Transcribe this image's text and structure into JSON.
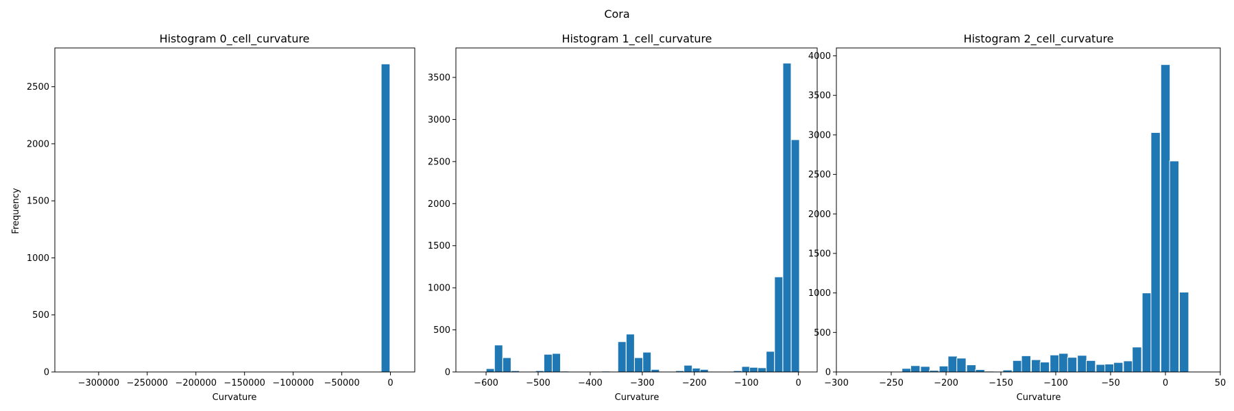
{
  "figure_title": "Cora",
  "colors": {
    "bar": "#1f77b4",
    "bar_edge": "#ffffff"
  },
  "chart_data": [
    {
      "type": "bar",
      "title": "Histogram 0_cell_curvature",
      "xlabel": "Curvature",
      "ylabel": "Frequency",
      "xlim": [
        -345000,
        25000
      ],
      "ylim": [
        0,
        2840
      ],
      "bar_width": 9000,
      "xticks": [
        -300000,
        -250000,
        -200000,
        -150000,
        -100000,
        -50000,
        0
      ],
      "xtick_labels": [
        "−300000",
        "−250000",
        "−200000",
        "−150000",
        "−100000",
        "−50000",
        "0"
      ],
      "yticks": [
        0,
        500,
        1000,
        1500,
        2000,
        2500
      ],
      "ytick_labels": [
        "0",
        "500",
        "1000",
        "1500",
        "2000",
        "2500"
      ],
      "bins": [
        {
          "x": -5000,
          "count": 2700
        }
      ]
    },
    {
      "type": "bar",
      "title": "Histogram 1_cell_curvature",
      "xlabel": "Curvature",
      "ylabel": "",
      "xlim": [
        -658,
        36
      ],
      "ylim": [
        0,
        3850
      ],
      "bar_width": 15.8,
      "xticks": [
        -600,
        -500,
        -400,
        -300,
        -200,
        -100,
        0
      ],
      "xtick_labels": [
        "−600",
        "−500",
        "−400",
        "−300",
        "−200",
        "−100",
        "0"
      ],
      "yticks": [
        0,
        500,
        1000,
        1500,
        2000,
        2500,
        3000,
        3500
      ],
      "ytick_labels": [
        "0",
        "500",
        "1000",
        "1500",
        "2000",
        "2500",
        "3000",
        "3500"
      ],
      "bins": [
        {
          "x": -592,
          "count": 40
        },
        {
          "x": -576,
          "count": 320
        },
        {
          "x": -560,
          "count": 170
        },
        {
          "x": -544,
          "count": 15
        },
        {
          "x": -497,
          "count": 15
        },
        {
          "x": -481,
          "count": 210
        },
        {
          "x": -465,
          "count": 220
        },
        {
          "x": -449,
          "count": 10
        },
        {
          "x": -433,
          "count": 5
        },
        {
          "x": -417,
          "count": 5
        },
        {
          "x": -402,
          "count": 5
        },
        {
          "x": -370,
          "count": 10
        },
        {
          "x": -339,
          "count": 360
        },
        {
          "x": -323,
          "count": 450
        },
        {
          "x": -307,
          "count": 170
        },
        {
          "x": -291,
          "count": 235
        },
        {
          "x": -275,
          "count": 30
        },
        {
          "x": -228,
          "count": 15
        },
        {
          "x": -212,
          "count": 80
        },
        {
          "x": -196,
          "count": 45
        },
        {
          "x": -181,
          "count": 30
        },
        {
          "x": -117,
          "count": 15
        },
        {
          "x": -101,
          "count": 65
        },
        {
          "x": -86,
          "count": 55
        },
        {
          "x": -70,
          "count": 50
        },
        {
          "x": -54,
          "count": 245
        },
        {
          "x": -38,
          "count": 1130
        },
        {
          "x": -22,
          "count": 3670
        },
        {
          "x": -6,
          "count": 2760
        }
      ]
    },
    {
      "type": "bar",
      "title": "Histogram 2_cell_curvature",
      "xlabel": "Curvature",
      "ylabel": "",
      "xlim": [
        -300,
        50
      ],
      "ylim": [
        0,
        4100
      ],
      "bar_width": 8.4,
      "xticks": [
        -300,
        -250,
        -200,
        -150,
        -100,
        -50,
        0,
        50
      ],
      "xtick_labels": [
        "−300",
        "−250",
        "−200",
        "−150",
        "−100",
        "−50",
        "0",
        "50"
      ],
      "yticks": [
        0,
        500,
        1000,
        1500,
        2000,
        2500,
        3000,
        3500,
        4000
      ],
      "ytick_labels": [
        "0",
        "500",
        "1000",
        "1500",
        "2000",
        "2500",
        "3000",
        "3500",
        "4000"
      ],
      "bins": [
        {
          "x": -236,
          "count": 45
        },
        {
          "x": -228,
          "count": 80
        },
        {
          "x": -219,
          "count": 70
        },
        {
          "x": -211,
          "count": 20
        },
        {
          "x": -202,
          "count": 75
        },
        {
          "x": -194,
          "count": 200
        },
        {
          "x": -186,
          "count": 175
        },
        {
          "x": -177,
          "count": 90
        },
        {
          "x": -169,
          "count": 30
        },
        {
          "x": -160,
          "count": 10
        },
        {
          "x": -152,
          "count": 5
        },
        {
          "x": -144,
          "count": 25
        },
        {
          "x": -135,
          "count": 145
        },
        {
          "x": -127,
          "count": 205
        },
        {
          "x": -118,
          "count": 155
        },
        {
          "x": -110,
          "count": 125
        },
        {
          "x": -101,
          "count": 215
        },
        {
          "x": -93,
          "count": 235
        },
        {
          "x": -85,
          "count": 185
        },
        {
          "x": -76,
          "count": 210
        },
        {
          "x": -68,
          "count": 145
        },
        {
          "x": -59,
          "count": 95
        },
        {
          "x": -51,
          "count": 100
        },
        {
          "x": -43,
          "count": 120
        },
        {
          "x": -34,
          "count": 140
        },
        {
          "x": -26,
          "count": 315
        },
        {
          "x": -17,
          "count": 1000
        },
        {
          "x": -9,
          "count": 3030
        },
        {
          "x": 0,
          "count": 3890
        },
        {
          "x": 8,
          "count": 2670
        },
        {
          "x": 17,
          "count": 1010
        }
      ]
    }
  ]
}
